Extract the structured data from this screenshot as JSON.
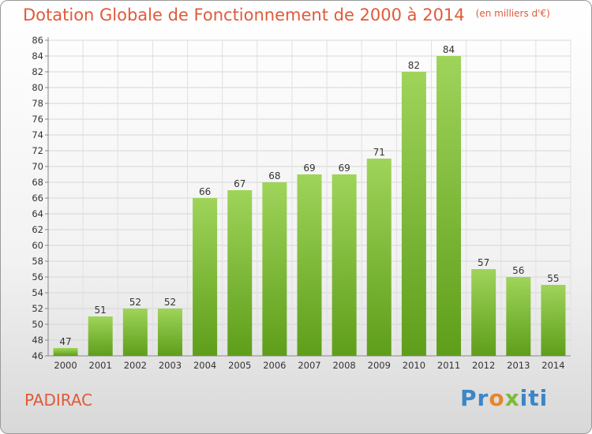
{
  "chart_data": {
    "type": "bar",
    "title": "Dotation Globale de Fonctionnement de 2000 à 2014",
    "subtitle": "(en milliers d'€)",
    "categories": [
      "2000",
      "2001",
      "2002",
      "2003",
      "2004",
      "2005",
      "2006",
      "2007",
      "2008",
      "2009",
      "2010",
      "2011",
      "2012",
      "2013",
      "2014"
    ],
    "values": [
      47,
      51,
      52,
      52,
      66,
      67,
      68,
      69,
      69,
      71,
      82,
      84,
      57,
      56,
      55
    ],
    "ylim": [
      46,
      86
    ],
    "ystep": 2,
    "xlabel": "",
    "ylabel": "",
    "grid": true
  },
  "commune": "PADIRAC",
  "logo": {
    "p1": "Pr",
    "p2": "o",
    "p3": "x",
    "p4": "iti"
  },
  "colors": {
    "title": "#e05a3a",
    "bar_top": "#9fd45a",
    "bar_bottom": "#5e9e1a"
  }
}
